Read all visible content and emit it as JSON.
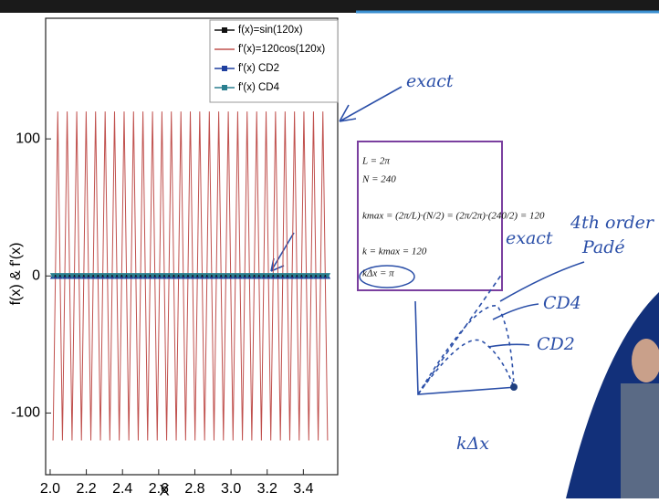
{
  "chart_data": {
    "type": "line",
    "x_label": "X",
    "y_label": "f(x) & f'(x)",
    "x": [
      2.016,
      2.042,
      2.068,
      2.094,
      2.121,
      2.147,
      2.173,
      2.199,
      2.225,
      2.251,
      2.278,
      2.304,
      2.33,
      2.356,
      2.382,
      2.409,
      2.435,
      2.461,
      2.487,
      2.513,
      2.539,
      2.566,
      2.592,
      2.618,
      2.644,
      2.67,
      2.697,
      2.723,
      2.749,
      2.775,
      2.801,
      2.827,
      2.854,
      2.88,
      2.906,
      2.932,
      2.958,
      2.985,
      3.011,
      3.037,
      3.063,
      3.089,
      3.115,
      3.142,
      3.168,
      3.194,
      3.22,
      3.246,
      3.273,
      3.299,
      3.325,
      3.351,
      3.377,
      3.403,
      3.43,
      3.456,
      3.482,
      3.508,
      3.534
    ],
    "series": [
      {
        "name": "f(x)=sin(120x)",
        "color": "#111111",
        "marker": "square",
        "values": [
          0,
          0,
          0,
          0,
          0,
          0,
          0,
          0,
          0,
          0,
          0,
          0,
          0,
          0,
          0,
          0,
          0,
          0,
          0,
          0,
          0,
          0,
          0,
          0,
          0,
          0,
          0,
          0,
          0,
          0,
          0,
          0,
          0,
          0,
          0,
          0,
          0,
          0,
          0,
          0,
          0,
          0,
          0,
          0,
          0,
          0,
          0,
          0,
          0,
          0,
          0,
          0,
          0,
          0,
          0,
          0,
          0,
          0,
          0
        ]
      },
      {
        "name": "f'(x)=120cos(120x)",
        "color": "#c0504d",
        "marker": "none",
        "values": [
          -120,
          120,
          -120,
          120,
          -120,
          120,
          -120,
          120,
          -120,
          120,
          -120,
          120,
          -120,
          120,
          -120,
          120,
          -120,
          120,
          -120,
          120,
          -120,
          120,
          -120,
          120,
          -120,
          120,
          -120,
          120,
          -120,
          120,
          -120,
          120,
          -120,
          120,
          -120,
          120,
          -120,
          120,
          -120,
          120,
          -120,
          120,
          -120,
          120,
          -120,
          120,
          -120,
          120,
          -120,
          120,
          -120,
          120,
          -120,
          120,
          -120,
          120,
          -120,
          120,
          -120
        ]
      },
      {
        "name": "f'(x) CD2",
        "color": "#1f3f9f",
        "marker": "triangle",
        "values": [
          0,
          0,
          0,
          0,
          0,
          0,
          0,
          0,
          0,
          0,
          0,
          0,
          0,
          0,
          0,
          0,
          0,
          0,
          0,
          0,
          0,
          0,
          0,
          0,
          0,
          0,
          0,
          0,
          0,
          0,
          0,
          0,
          0,
          0,
          0,
          0,
          0,
          0,
          0,
          0,
          0,
          0,
          0,
          0,
          0,
          0,
          0,
          0,
          0,
          0,
          0,
          0,
          0,
          0,
          0,
          0,
          0,
          0,
          0
        ]
      },
      {
        "name": "f'(x) CD4",
        "color": "#2a7f8f",
        "marker": "triangle-down",
        "values": [
          0,
          0,
          0,
          0,
          0,
          0,
          0,
          0,
          0,
          0,
          0,
          0,
          0,
          0,
          0,
          0,
          0,
          0,
          0,
          0,
          0,
          0,
          0,
          0,
          0,
          0,
          0,
          0,
          0,
          0,
          0,
          0,
          0,
          0,
          0,
          0,
          0,
          0,
          0,
          0,
          0,
          0,
          0,
          0,
          0,
          0,
          0,
          0,
          0,
          0,
          0,
          0,
          0,
          0,
          0,
          0,
          0,
          0,
          0
        ]
      }
    ],
    "xlim": [
      1.975,
      3.59
    ],
    "ylim": [
      -145,
      188
    ],
    "xticks": [
      {
        "value": 2,
        "label": "2.0"
      },
      2.2,
      2.4,
      2.6,
      2.8,
      {
        "value": 3,
        "label": "3.0"
      },
      3.2,
      3.4
    ],
    "yticks": [
      -100,
      0,
      100
    ],
    "legend": "top"
  },
  "box": {
    "lines": [
      "L = 2π",
      "N = 240",
      "kmax = (2π/L)·(N/2) = (2π/2π)·(240/2) = 120",
      "k = kmax = 120",
      "kΔx = π"
    ]
  },
  "annotations": [
    "exact",
    "exact",
    "4th order",
    "Padé",
    "CD4",
    "CD2",
    "kΔx"
  ]
}
